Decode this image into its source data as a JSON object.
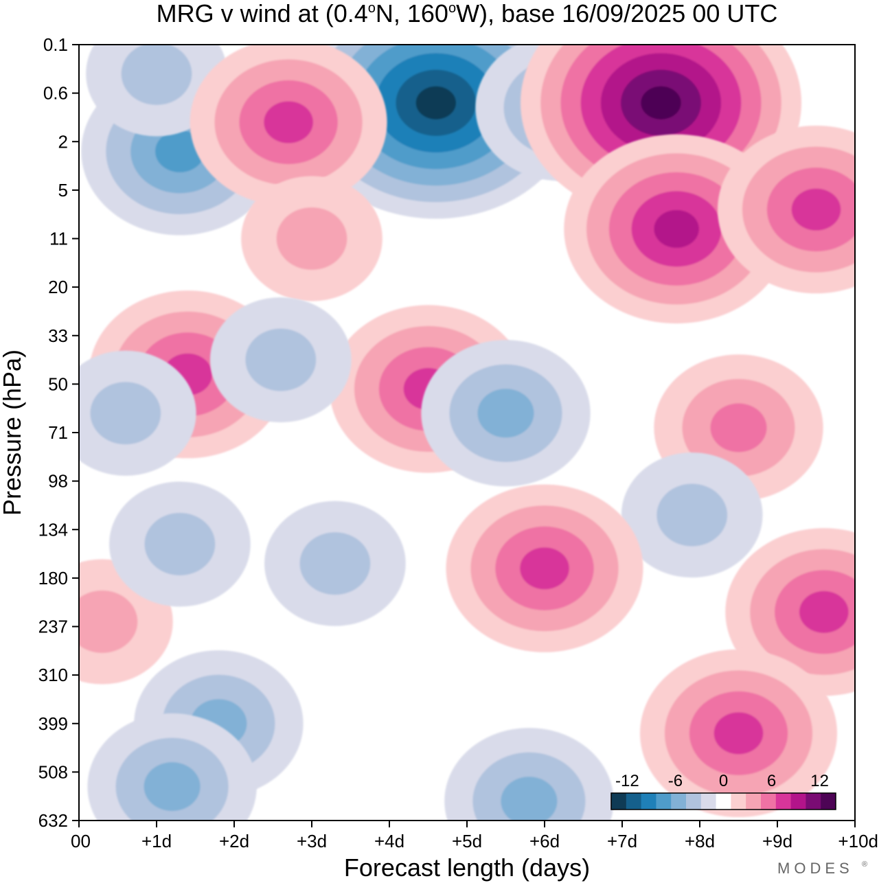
{
  "chart_data": {
    "type": "heatmap",
    "title": "MRG v wind at (0.4°N, 160°W),  base 16/09/2025  00 UTC",
    "title_parts": {
      "prefix": "MRG v wind at (0.4",
      "deg1": "o",
      "mid": "N, 160",
      "deg2": "o",
      "suffix": "W),  base 16/09/2025  00 UTC"
    },
    "xlabel": "Forecast length (days)",
    "ylabel": "Pressure (hPa)",
    "x_ticks": [
      "00",
      "+1d",
      "+2d",
      "+3d",
      "+4d",
      "+5d",
      "+6d",
      "+7d",
      "+8d",
      "+9d",
      "+10d"
    ],
    "xlim": [
      0,
      10
    ],
    "y_ticks": [
      "0.1",
      "0.6",
      "2",
      "5",
      "11",
      "20",
      "33",
      "50",
      "71",
      "98",
      "134",
      "180",
      "237",
      "310",
      "399",
      "508",
      "632"
    ],
    "colorbar": {
      "tick_labels": [
        "-12",
        "-6",
        "0",
        "6",
        "12"
      ],
      "tick_values": [
        -12,
        -6,
        0,
        6,
        12
      ],
      "levels": [
        -14,
        -12,
        -10,
        -8,
        -6,
        -4,
        -2,
        0,
        2,
        4,
        6,
        8,
        10,
        12,
        14
      ],
      "colors": [
        "#0f3b55",
        "#15608c",
        "#1f80b8",
        "#4f9cca",
        "#82b1d6",
        "#b0c3de",
        "#d9dbea",
        "#ffffff",
        "#fbcfd0",
        "#f6a4b4",
        "#ef72a4",
        "#d8359a",
        "#b3148a",
        "#7a0c74",
        "#4d0455"
      ]
    },
    "features": [
      {
        "sign": "neg",
        "day": 4.6,
        "level": 1.2,
        "peak": -14
      },
      {
        "sign": "neg",
        "day": 6.2,
        "level": 1.3,
        "peak": -6
      },
      {
        "sign": "neg",
        "day": 1.3,
        "level": 2.2,
        "peak": -7
      },
      {
        "sign": "neg",
        "day": 1.0,
        "level": 0.6,
        "peak": -3
      },
      {
        "sign": "pos",
        "day": 7.5,
        "level": 1.2,
        "peak": 14
      },
      {
        "sign": "pos",
        "day": 7.7,
        "level": 3.8,
        "peak": 10
      },
      {
        "sign": "pos",
        "day": 9.5,
        "level": 3.4,
        "peak": 8
      },
      {
        "sign": "pos",
        "day": 2.7,
        "level": 1.6,
        "peak": 7
      },
      {
        "sign": "pos",
        "day": 3.0,
        "level": 4.0,
        "peak": 4
      },
      {
        "sign": "pos",
        "day": 1.4,
        "level": 6.8,
        "peak": 7
      },
      {
        "sign": "pos",
        "day": 4.5,
        "level": 7.1,
        "peak": 7
      },
      {
        "sign": "neg",
        "day": 2.6,
        "level": 6.5,
        "peak": -4
      },
      {
        "sign": "neg",
        "day": 5.5,
        "level": 7.6,
        "peak": -5
      },
      {
        "sign": "neg",
        "day": 0.6,
        "level": 7.6,
        "peak": -4
      },
      {
        "sign": "pos",
        "day": 8.5,
        "level": 7.9,
        "peak": 6
      },
      {
        "sign": "pos",
        "day": 0.3,
        "level": 11.9,
        "peak": 4
      },
      {
        "sign": "neg",
        "day": 1.3,
        "level": 10.3,
        "peak": -4
      },
      {
        "sign": "neg",
        "day": 3.3,
        "level": 10.7,
        "peak": -4
      },
      {
        "sign": "neg",
        "day": 7.9,
        "level": 9.7,
        "peak": -3
      },
      {
        "sign": "pos",
        "day": 6.0,
        "level": 10.8,
        "peak": 7
      },
      {
        "sign": "pos",
        "day": 9.6,
        "level": 11.7,
        "peak": 8
      },
      {
        "sign": "neg",
        "day": 1.8,
        "level": 14.0,
        "peak": -5
      },
      {
        "sign": "neg",
        "day": 1.2,
        "level": 15.3,
        "peak": -6
      },
      {
        "sign": "neg",
        "day": 5.8,
        "level": 15.6,
        "peak": -5
      },
      {
        "sign": "pos",
        "day": 8.5,
        "level": 14.2,
        "peak": 7
      }
    ]
  },
  "branding": {
    "name": "MODES",
    "mark": "®"
  }
}
